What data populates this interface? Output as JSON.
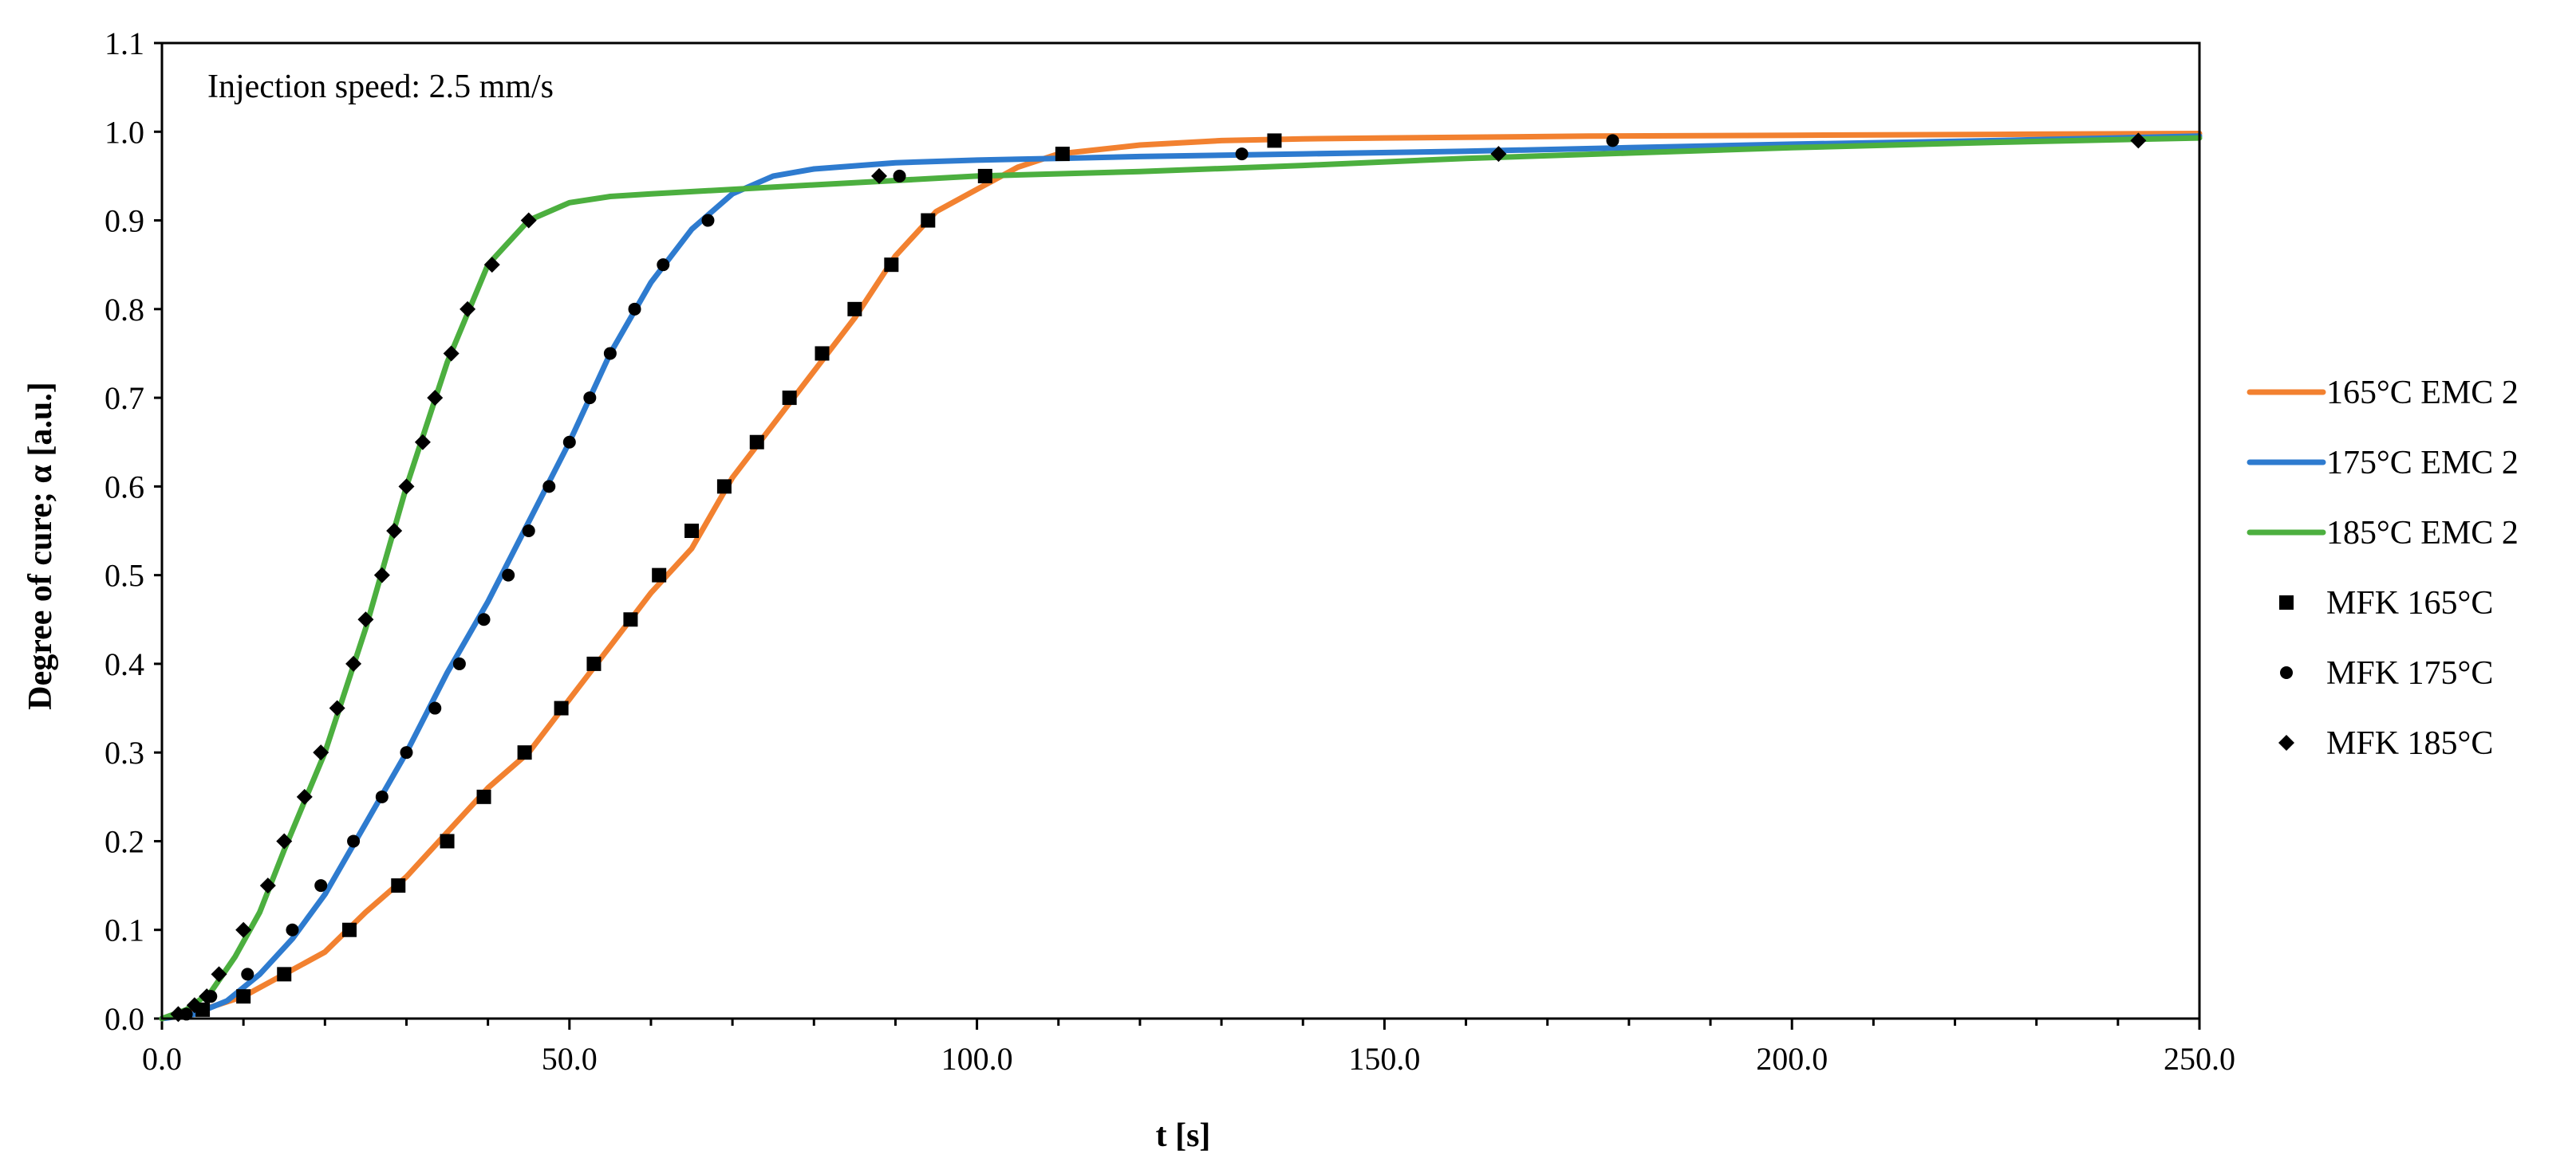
{
  "chart_data": {
    "type": "line",
    "annotation": "Injection speed: 2.5 mm/s",
    "xlabel": "t [s]",
    "ylabel": "Degree of cure; α [a.u.]",
    "xlim": [
      0,
      250
    ],
    "ylim": [
      0,
      1.1
    ],
    "x_ticks": [
      "0.0",
      "50.0",
      "100.0",
      "150.0",
      "200.0",
      "250.0"
    ],
    "y_ticks": [
      "0.0",
      "0.1",
      "0.2",
      "0.3",
      "0.4",
      "0.5",
      "0.6",
      "0.7",
      "0.8",
      "0.9",
      "1.0",
      "1.1"
    ],
    "grid": false,
    "legend_position": "right",
    "series": [
      {
        "name": "165°C EMC 2",
        "kind": "line",
        "color": "#F28130",
        "points": [
          [
            0,
            0
          ],
          [
            5,
            0.01
          ],
          [
            10,
            0.025
          ],
          [
            15,
            0.05
          ],
          [
            20,
            0.075
          ],
          [
            25,
            0.12
          ],
          [
            30,
            0.16
          ],
          [
            35,
            0.21
          ],
          [
            40,
            0.26
          ],
          [
            45,
            0.3
          ],
          [
            50,
            0.36
          ],
          [
            55,
            0.42
          ],
          [
            60,
            0.48
          ],
          [
            65,
            0.53
          ],
          [
            70,
            0.61
          ],
          [
            75,
            0.67
          ],
          [
            80,
            0.73
          ],
          [
            85,
            0.79
          ],
          [
            90,
            0.86
          ],
          [
            95,
            0.91
          ],
          [
            100,
            0.935
          ],
          [
            105,
            0.96
          ],
          [
            110,
            0.975
          ],
          [
            120,
            0.985
          ],
          [
            130,
            0.99
          ],
          [
            140,
            0.992
          ],
          [
            150,
            0.993
          ],
          [
            175,
            0.995
          ],
          [
            200,
            0.996
          ],
          [
            225,
            0.997
          ],
          [
            250,
            0.998
          ]
        ]
      },
      {
        "name": "175°C EMC 2",
        "kind": "line",
        "color": "#2E7BCF",
        "points": [
          [
            0,
            0
          ],
          [
            4,
            0.005
          ],
          [
            8,
            0.02
          ],
          [
            12,
            0.05
          ],
          [
            16,
            0.09
          ],
          [
            20,
            0.14
          ],
          [
            25,
            0.22
          ],
          [
            30,
            0.3
          ],
          [
            35,
            0.39
          ],
          [
            40,
            0.47
          ],
          [
            45,
            0.56
          ],
          [
            50,
            0.65
          ],
          [
            55,
            0.75
          ],
          [
            60,
            0.83
          ],
          [
            65,
            0.89
          ],
          [
            70,
            0.93
          ],
          [
            75,
            0.95
          ],
          [
            80,
            0.958
          ],
          [
            90,
            0.965
          ],
          [
            100,
            0.968
          ],
          [
            110,
            0.97
          ],
          [
            120,
            0.972
          ],
          [
            140,
            0.975
          ],
          [
            160,
            0.978
          ],
          [
            180,
            0.982
          ],
          [
            200,
            0.986
          ],
          [
            225,
            0.99
          ],
          [
            250,
            0.995
          ]
        ]
      },
      {
        "name": "185°C EMC 2",
        "kind": "line",
        "color": "#4CAF3F",
        "points": [
          [
            0,
            0
          ],
          [
            3,
            0.01
          ],
          [
            6,
            0.03
          ],
          [
            9,
            0.07
          ],
          [
            12,
            0.12
          ],
          [
            15,
            0.19
          ],
          [
            20,
            0.3
          ],
          [
            25,
            0.44
          ],
          [
            30,
            0.6
          ],
          [
            35,
            0.74
          ],
          [
            40,
            0.85
          ],
          [
            45,
            0.9
          ],
          [
            50,
            0.92
          ],
          [
            55,
            0.927
          ],
          [
            60,
            0.93
          ],
          [
            70,
            0.935
          ],
          [
            80,
            0.94
          ],
          [
            90,
            0.945
          ],
          [
            100,
            0.95
          ],
          [
            120,
            0.955
          ],
          [
            140,
            0.962
          ],
          [
            160,
            0.97
          ],
          [
            180,
            0.976
          ],
          [
            200,
            0.982
          ],
          [
            225,
            0.988
          ],
          [
            250,
            0.993
          ]
        ]
      },
      {
        "name": "MFK 165°C",
        "kind": "markers",
        "marker": "square",
        "color": "#000000",
        "points": [
          [
            5,
            0.01
          ],
          [
            10,
            0.025
          ],
          [
            15,
            0.05
          ],
          [
            23,
            0.1
          ],
          [
            29,
            0.15
          ],
          [
            35,
            0.2
          ],
          [
            39.5,
            0.25
          ],
          [
            44.5,
            0.3
          ],
          [
            49,
            0.35
          ],
          [
            53,
            0.4
          ],
          [
            57.5,
            0.45
          ],
          [
            61,
            0.5
          ],
          [
            65,
            0.55
          ],
          [
            69,
            0.6
          ],
          [
            73,
            0.65
          ],
          [
            77,
            0.7
          ],
          [
            81,
            0.75
          ],
          [
            85,
            0.8
          ],
          [
            89.5,
            0.85
          ],
          [
            94,
            0.9
          ],
          [
            101,
            0.95
          ],
          [
            110.5,
            0.975
          ],
          [
            136.5,
            0.99
          ]
        ]
      },
      {
        "name": "MFK 175°C",
        "kind": "markers",
        "marker": "circle",
        "color": "#000000",
        "points": [
          [
            3,
            0.005
          ],
          [
            6,
            0.025
          ],
          [
            10.5,
            0.05
          ],
          [
            16,
            0.1
          ],
          [
            19.5,
            0.15
          ],
          [
            23.5,
            0.2
          ],
          [
            27,
            0.25
          ],
          [
            30,
            0.3
          ],
          [
            33.5,
            0.35
          ],
          [
            36.5,
            0.4
          ],
          [
            39.5,
            0.45
          ],
          [
            42.5,
            0.5
          ],
          [
            45,
            0.55
          ],
          [
            47.5,
            0.6
          ],
          [
            50,
            0.65
          ],
          [
            52.5,
            0.7
          ],
          [
            55,
            0.75
          ],
          [
            58,
            0.8
          ],
          [
            61.5,
            0.85
          ],
          [
            67,
            0.9
          ],
          [
            90.5,
            0.95
          ],
          [
            132.5,
            0.975
          ],
          [
            178,
            0.99
          ]
        ]
      },
      {
        "name": "MFK 185°C",
        "kind": "markers",
        "marker": "diamond",
        "color": "#000000",
        "points": [
          [
            2,
            0.005
          ],
          [
            4,
            0.015
          ],
          [
            5.5,
            0.025
          ],
          [
            7,
            0.05
          ],
          [
            10,
            0.1
          ],
          [
            13,
            0.15
          ],
          [
            15,
            0.2
          ],
          [
            17.5,
            0.25
          ],
          [
            19.5,
            0.3
          ],
          [
            21.5,
            0.35
          ],
          [
            23.5,
            0.4
          ],
          [
            25,
            0.45
          ],
          [
            27,
            0.5
          ],
          [
            28.5,
            0.55
          ],
          [
            30,
            0.6
          ],
          [
            32,
            0.65
          ],
          [
            33.5,
            0.7
          ],
          [
            35.5,
            0.75
          ],
          [
            37.5,
            0.8
          ],
          [
            40.5,
            0.85
          ],
          [
            45,
            0.9
          ],
          [
            88,
            0.95
          ],
          [
            164,
            0.975
          ],
          [
            242.5,
            0.99
          ]
        ]
      }
    ]
  }
}
